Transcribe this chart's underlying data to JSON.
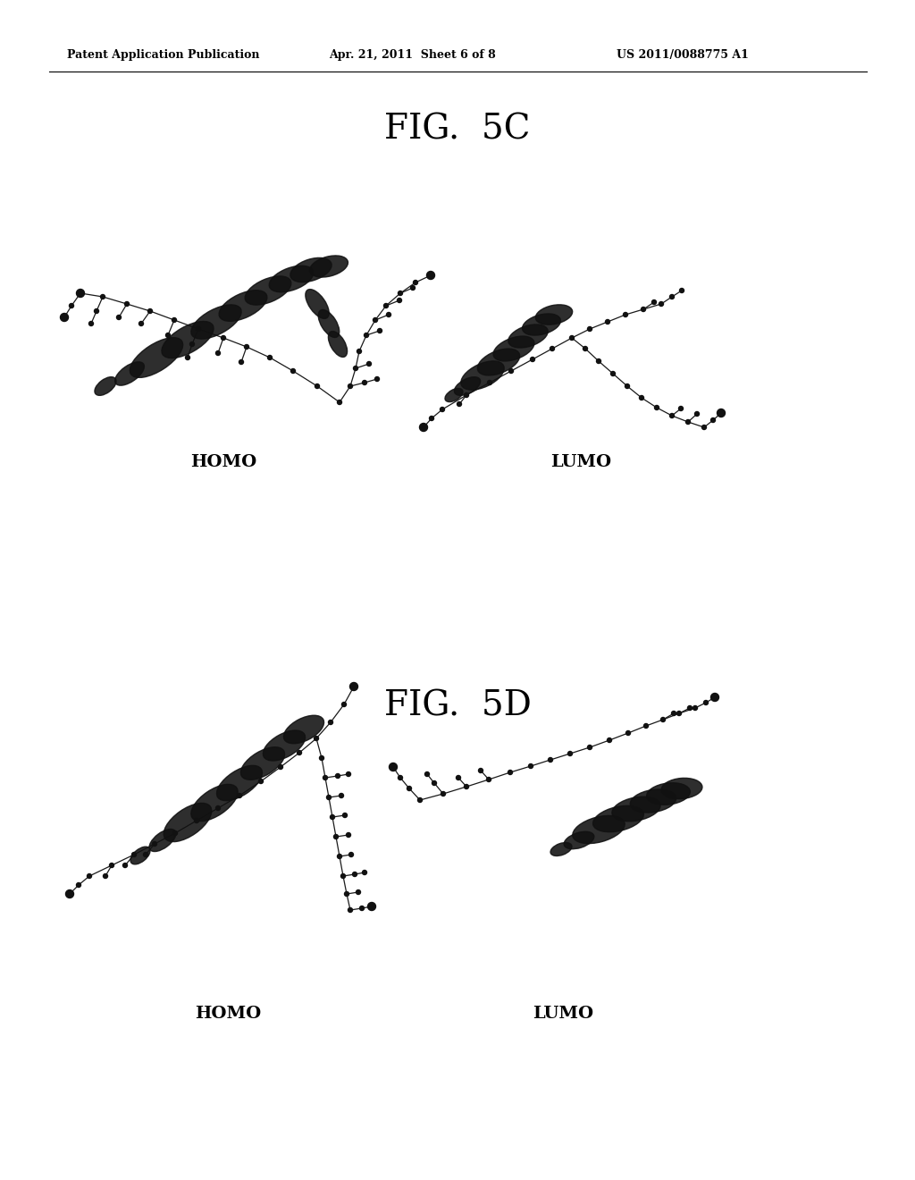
{
  "header_left": "Patent Application Publication",
  "header_mid": "Apr. 21, 2011  Sheet 6 of 8",
  "header_right": "US 2011/0088775 A1",
  "fig5c_title": "FIG.  5C",
  "fig5d_title": "FIG.  5D",
  "homo_label": "HOMO",
  "lumo_label": "LUMO",
  "bg_color": "#ffffff",
  "text_color": "#000000",
  "header_fontsize": 9,
  "fig_title_fontsize": 28,
  "label_fontsize": 14
}
